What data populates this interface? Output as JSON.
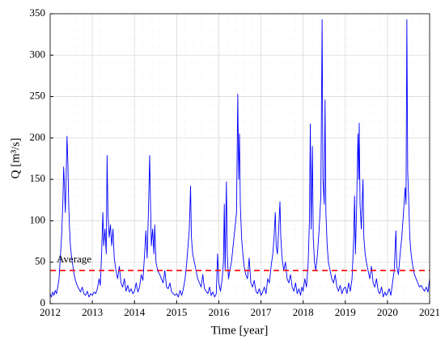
{
  "chart_data": {
    "type": "line",
    "xlabel": "Time [year]",
    "ylabel": "Q [m³/s]",
    "xlim": [
      2012,
      2021
    ],
    "xticks": [
      2012,
      2013,
      2014,
      2015,
      2016,
      2017,
      2018,
      2019,
      2020,
      2021
    ],
    "ylim": [
      0,
      350
    ],
    "yticks": [
      0,
      50,
      100,
      150,
      200,
      250,
      300,
      350
    ],
    "grid": true,
    "minor_grid": true,
    "average": {
      "label": "Average",
      "value": 40,
      "color": "#ff0000"
    },
    "x": [
      2012.0,
      2012.03,
      2012.06,
      2012.09,
      2012.12,
      2012.15,
      2012.18,
      2012.21,
      2012.24,
      2012.27,
      2012.3,
      2012.32,
      2012.34,
      2012.36,
      2012.38,
      2012.4,
      2012.42,
      2012.44,
      2012.46,
      2012.48,
      2012.51,
      2012.54,
      2012.57,
      2012.6,
      2012.64,
      2012.68,
      2012.72,
      2012.76,
      2012.8,
      2012.84,
      2012.88,
      2012.92,
      2012.96,
      2013.0,
      2013.04,
      2013.08,
      2013.12,
      2013.16,
      2013.19,
      2013.22,
      2013.25,
      2013.27,
      2013.3,
      2013.33,
      2013.35,
      2013.37,
      2013.4,
      2013.43,
      2013.46,
      2013.49,
      2013.52,
      2013.56,
      2013.6,
      2013.64,
      2013.68,
      2013.72,
      2013.76,
      2013.8,
      2013.84,
      2013.88,
      2013.92,
      2013.96,
      2014.0,
      2014.04,
      2014.08,
      2014.12,
      2014.16,
      2014.2,
      2014.24,
      2014.27,
      2014.3,
      2014.33,
      2014.36,
      2014.38,
      2014.4,
      2014.43,
      2014.46,
      2014.48,
      2014.51,
      2014.55,
      2014.6,
      2014.64,
      2014.68,
      2014.72,
      2014.76,
      2014.8,
      2014.84,
      2014.88,
      2014.92,
      2014.96,
      2015.0,
      2015.04,
      2015.08,
      2015.12,
      2015.16,
      2015.2,
      2015.24,
      2015.27,
      2015.3,
      2015.33,
      2015.35,
      2015.38,
      2015.42,
      2015.46,
      2015.5,
      2015.54,
      2015.58,
      2015.62,
      2015.66,
      2015.7,
      2015.74,
      2015.78,
      2015.82,
      2015.86,
      2015.9,
      2015.94,
      2015.97,
      2016.0,
      2016.04,
      2016.08,
      2016.11,
      2016.13,
      2016.15,
      2016.18,
      2016.2,
      2016.23,
      2016.26,
      2016.3,
      2016.34,
      2016.38,
      2016.42,
      2016.45,
      2016.47,
      2016.49,
      2016.51,
      2016.54,
      2016.57,
      2016.6,
      2016.64,
      2016.68,
      2016.72,
      2016.76,
      2016.8,
      2016.84,
      2016.88,
      2016.92,
      2016.96,
      2017.0,
      2017.04,
      2017.08,
      2017.12,
      2017.16,
      2017.2,
      2017.24,
      2017.28,
      2017.31,
      2017.34,
      2017.36,
      2017.39,
      2017.42,
      2017.45,
      2017.47,
      2017.5,
      2017.54,
      2017.58,
      2017.62,
      2017.66,
      2017.7,
      2017.74,
      2017.78,
      2017.82,
      2017.86,
      2017.9,
      2017.94,
      2017.97,
      2018.0,
      2018.04,
      2018.08,
      2018.12,
      2018.15,
      2018.17,
      2018.19,
      2018.22,
      2018.24,
      2018.27,
      2018.3,
      2018.34,
      2018.38,
      2018.42,
      2018.45,
      2018.47,
      2018.5,
      2018.52,
      2018.54,
      2018.57,
      2018.6,
      2018.64,
      2018.68,
      2018.72,
      2018.76,
      2018.8,
      2018.84,
      2018.88,
      2018.92,
      2018.96,
      2019.0,
      2019.04,
      2019.08,
      2019.12,
      2019.16,
      2019.2,
      2019.22,
      2019.24,
      2019.27,
      2019.3,
      2019.32,
      2019.33,
      2019.35,
      2019.38,
      2019.42,
      2019.44,
      2019.47,
      2019.5,
      2019.54,
      2019.58,
      2019.62,
      2019.66,
      2019.7,
      2019.74,
      2019.78,
      2019.82,
      2019.86,
      2019.9,
      2019.94,
      2019.97,
      2020.0,
      2020.04,
      2020.08,
      2020.12,
      2020.16,
      2020.2,
      2020.22,
      2020.26,
      2020.3,
      2020.34,
      2020.38,
      2020.42,
      2020.44,
      2020.46,
      2020.48,
      2020.5,
      2020.53,
      2020.56,
      2020.6,
      2020.64,
      2020.68,
      2020.72,
      2020.76,
      2020.8,
      2020.84,
      2020.88,
      2020.92,
      2020.96,
      2021.0
    ],
    "series": [
      {
        "color": "#0000ff",
        "values": [
          12,
          8,
          14,
          10,
          16,
          12,
          20,
          30,
          55,
          80,
          120,
          165,
          140,
          110,
          155,
          202,
          170,
          120,
          90,
          70,
          55,
          45,
          35,
          28,
          22,
          18,
          14,
          20,
          12,
          10,
          15,
          8,
          12,
          10,
          14,
          12,
          18,
          30,
          22,
          60,
          110,
          70,
          90,
          60,
          179,
          110,
          80,
          95,
          70,
          90,
          55,
          40,
          30,
          45,
          25,
          20,
          30,
          15,
          22,
          14,
          18,
          12,
          15,
          25,
          14,
          20,
          35,
          28,
          60,
          88,
          55,
          110,
          179,
          120,
          70,
          90,
          60,
          95,
          50,
          40,
          35,
          30,
          25,
          40,
          20,
          18,
          25,
          14,
          12,
          10,
          12,
          8,
          16,
          10,
          18,
          30,
          50,
          70,
          90,
          142,
          80,
          60,
          50,
          40,
          30,
          25,
          20,
          35,
          18,
          15,
          12,
          20,
          10,
          14,
          8,
          12,
          60,
          25,
          15,
          30,
          50,
          120,
          40,
          147,
          60,
          30,
          40,
          50,
          70,
          90,
          110,
          253,
          150,
          205,
          120,
          80,
          60,
          45,
          35,
          30,
          55,
          25,
          20,
          28,
          15,
          12,
          18,
          10,
          14,
          20,
          12,
          30,
          25,
          45,
          60,
          80,
          110,
          70,
          60,
          90,
          123,
          80,
          55,
          40,
          50,
          30,
          25,
          35,
          20,
          15,
          25,
          12,
          18,
          10,
          20,
          15,
          30,
          20,
          50,
          100,
          217,
          90,
          190,
          80,
          50,
          40,
          60,
          90,
          130,
          343,
          150,
          120,
          246,
          110,
          70,
          50,
          40,
          30,
          25,
          35,
          20,
          15,
          22,
          12,
          18,
          20,
          12,
          25,
          15,
          30,
          80,
          130,
          60,
          120,
          205,
          150,
          218,
          120,
          90,
          150,
          80,
          60,
          50,
          40,
          30,
          45,
          25,
          20,
          30,
          15,
          12,
          20,
          8,
          14,
          10,
          12,
          18,
          10,
          25,
          40,
          88,
          45,
          35,
          60,
          80,
          110,
          140,
          120,
          343,
          160,
          130,
          80,
          60,
          45,
          35,
          30,
          25,
          20,
          22,
          18,
          15,
          20,
          14,
          30
        ]
      }
    ]
  }
}
